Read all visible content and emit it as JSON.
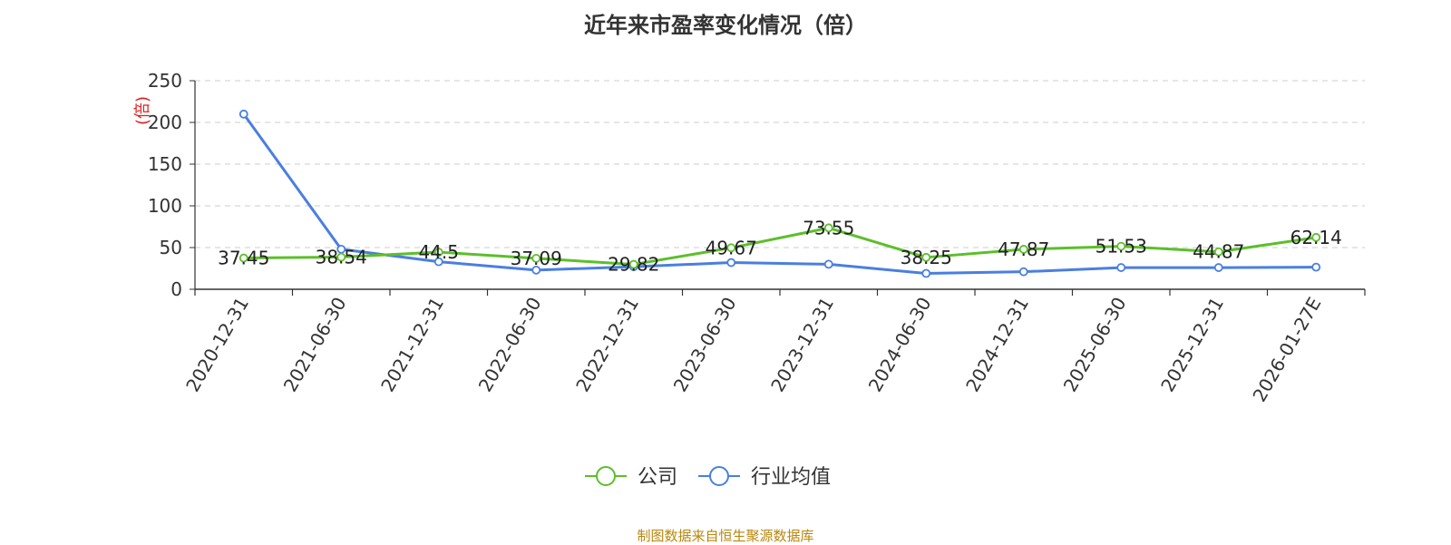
{
  "chart_data": {
    "type": "line",
    "title": "近年来市盈率变化情况（倍）",
    "ylabel": "(倍)",
    "xlabel": "",
    "ylim": [
      0,
      250
    ],
    "yticks": [
      0,
      50,
      100,
      150,
      200,
      250
    ],
    "grid": true,
    "legend_position": "bottom-center",
    "categories": [
      "2020-12-31",
      "2021-06-30",
      "2021-12-31",
      "2022-06-30",
      "2022-12-31",
      "2023-06-30",
      "2023-12-31",
      "2024-06-30",
      "2024-12-31",
      "2025-06-30",
      "2025-12-31",
      "2026-01-27E"
    ],
    "series": [
      {
        "name": "公司",
        "color": "#5cbf2a",
        "values": [
          37.45,
          38.54,
          44.5,
          37.09,
          29.82,
          49.67,
          73.55,
          38.25,
          47.87,
          51.53,
          44.87,
          62.14
        ],
        "labels": [
          "37.45",
          "38.54",
          "44.5",
          "37.09",
          "29.82",
          "49.67",
          "73.55",
          "38.25",
          "47.87",
          "51.53",
          "44.87",
          "62.14"
        ]
      },
      {
        "name": "行业均值",
        "color": "#4a7fe0",
        "values": [
          210,
          48,
          33,
          23,
          27,
          32,
          30,
          19,
          21,
          26,
          26,
          26.5
        ]
      }
    ]
  },
  "footer": {
    "source_note": "制图数据来自恒生聚源数据库",
    "source_color": "#b8860b"
  }
}
